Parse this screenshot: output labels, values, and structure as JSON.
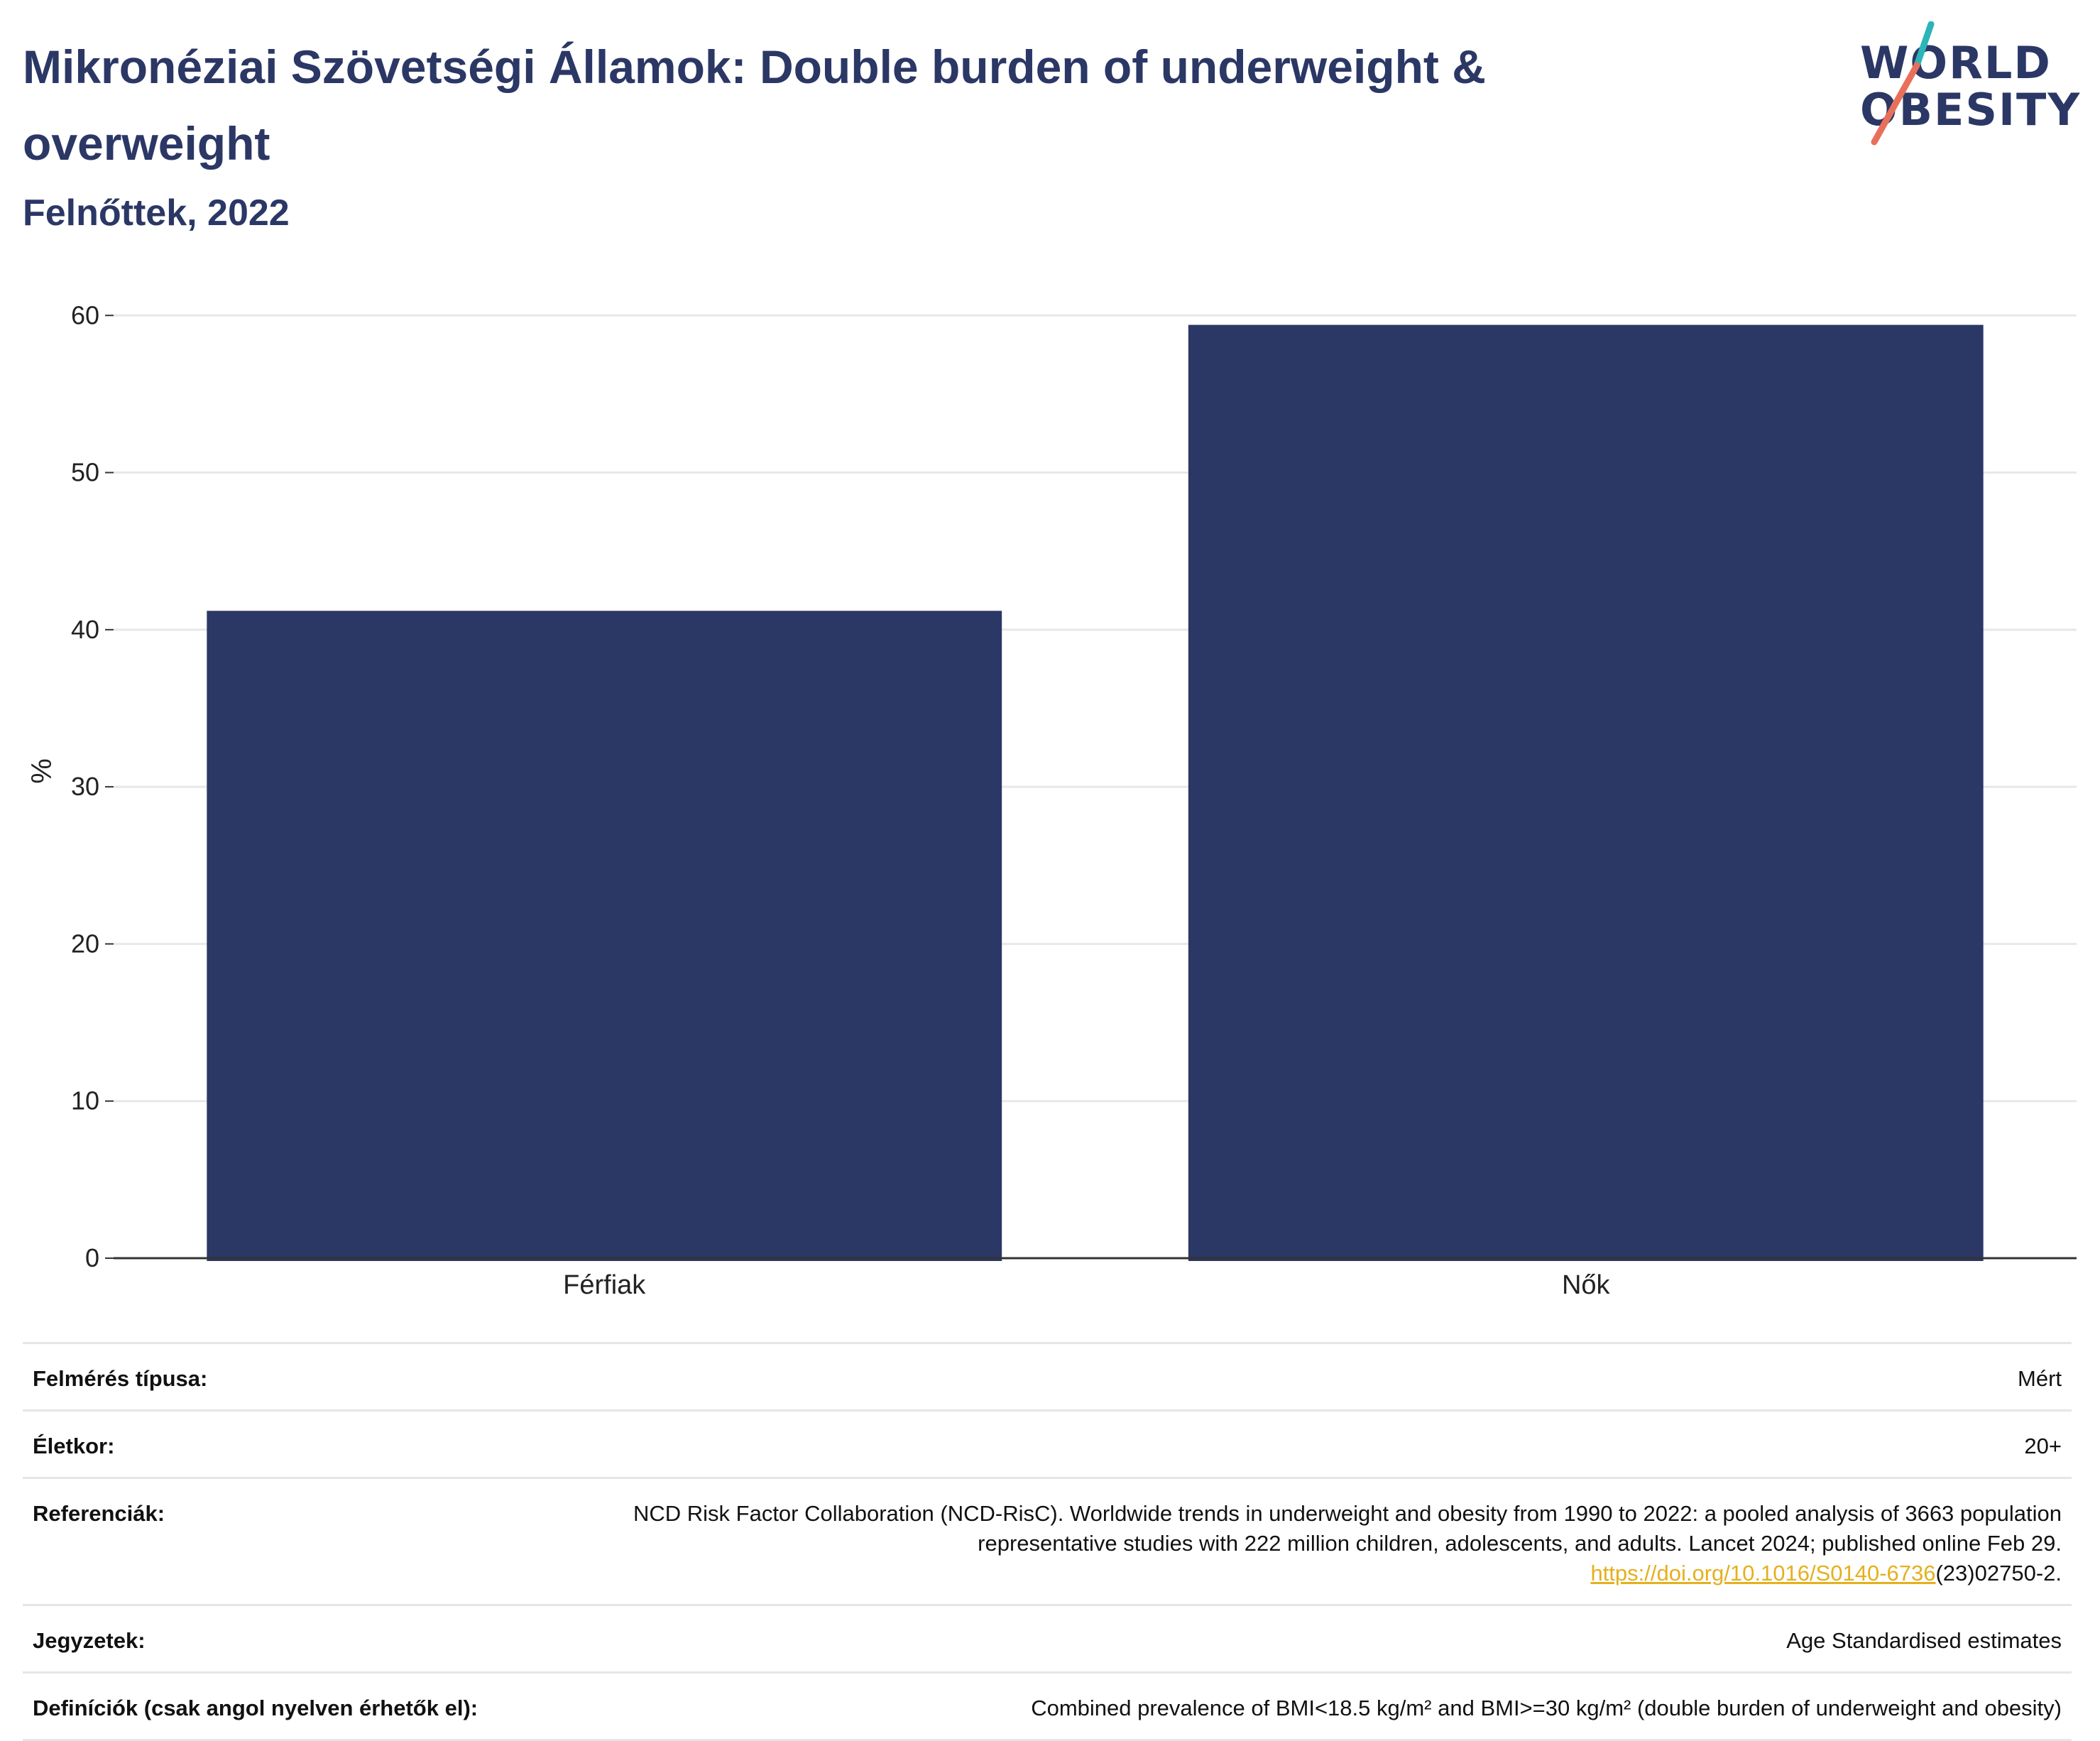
{
  "header": {
    "title": "Mikronéziai Szövetségi Államok: Double burden of underweight & overweight",
    "subtitle": "Felnőttek, 2022"
  },
  "logo": {
    "line1": "WORLD",
    "line2": "OBESITY",
    "colors": {
      "text": "#2b3765",
      "slash_top": "#2bb5b8",
      "slash_bottom": "#e8705a"
    }
  },
  "chart_data": {
    "type": "bar",
    "categories": [
      "Férfiak",
      "Nők"
    ],
    "values": [
      41.2,
      59.4
    ],
    "ylabel": "%",
    "yticks": [
      0,
      10,
      20,
      30,
      40,
      50,
      60
    ],
    "ylim": [
      0,
      62
    ],
    "grid": true,
    "bar_color": "#2b3765"
  },
  "meta": {
    "rows": [
      {
        "label": "Felmérés típusa:",
        "value": "Mért"
      },
      {
        "label": "Életkor:",
        "value": "20+"
      },
      {
        "label": "Referenciák:",
        "value": "NCD Risk Factor Collaboration (NCD-RisC). Worldwide trends in underweight and obesity from 1990 to 2022: a pooled analysis of 3663 population representative studies with 222 million children, adolescents, and adults. Lancet 2024; published online Feb 29.",
        "link": "https://doi.org/10.1016/S0140-6736",
        "link_suffix": "(23)02750-2."
      },
      {
        "label": "Jegyzetek:",
        "value": "Age Standardised estimates"
      },
      {
        "label": "Definíciók (csak angol nyelven érhetők el):",
        "value": "Combined prevalence of BMI<18.5 kg/m² and BMI>=30 kg/m² (double burden of underweight and obesity)"
      }
    ]
  }
}
